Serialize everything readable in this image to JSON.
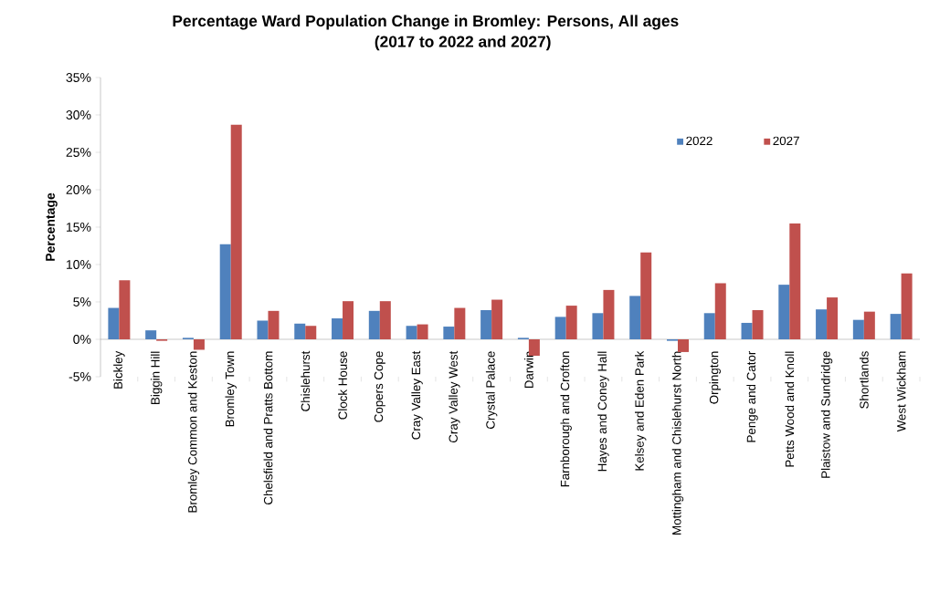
{
  "chart_data": {
    "type": "bar",
    "title": "Percentage Ward Population Change in Bromley: Persons, All ages\n(2017 to 2022 and 2027)",
    "ylabel": "Percentage",
    "categories": [
      "Bickley",
      "Biggin Hill",
      "Bromley Common and Keston",
      "Bromley Town",
      "Chelsfield and Pratts Bottom",
      "Chislehurst",
      "Clock House",
      "Copers Cope",
      "Cray Valley East",
      "Cray Valley West",
      "Crystal Palace",
      "Darwin",
      "Farnborough and Crofton",
      "Hayes and Coney Hall",
      "Kelsey and Eden Park",
      "Mottingham and Chislehurst North",
      "Orpington",
      "Penge and Cator",
      "Petts Wood and Knoll",
      "Plaistow and Sundridge",
      "Shortlands",
      "West Wickham"
    ],
    "series": [
      {
        "name": "2022",
        "color": "#4f81bd",
        "values": [
          4.2,
          1.2,
          0.2,
          12.7,
          2.5,
          2.1,
          2.8,
          3.8,
          1.8,
          1.7,
          3.9,
          0.2,
          3.0,
          3.5,
          5.8,
          -0.2,
          3.5,
          2.2,
          7.3,
          4.0,
          2.6,
          3.4
        ]
      },
      {
        "name": "2027",
        "color": "#c0504d",
        "values": [
          7.9,
          -0.2,
          -1.4,
          28.7,
          3.8,
          1.8,
          5.1,
          5.1,
          2.0,
          4.2,
          5.3,
          -2.2,
          4.5,
          6.6,
          11.6,
          -1.7,
          7.5,
          3.9,
          15.5,
          5.6,
          3.7,
          8.8
        ]
      }
    ],
    "ylim": [
      -5,
      35
    ],
    "yticks": [
      {
        "value": -5,
        "label": "-5%"
      },
      {
        "value": 0,
        "label": "0%"
      },
      {
        "value": 5,
        "label": "5%"
      },
      {
        "value": 10,
        "label": "10%"
      },
      {
        "value": 15,
        "label": "15%"
      },
      {
        "value": 20,
        "label": "20%"
      },
      {
        "value": 25,
        "label": "25%"
      },
      {
        "value": 30,
        "label": "30%"
      },
      {
        "value": 35,
        "label": "35%"
      }
    ],
    "grid": false,
    "legend": "top right"
  }
}
